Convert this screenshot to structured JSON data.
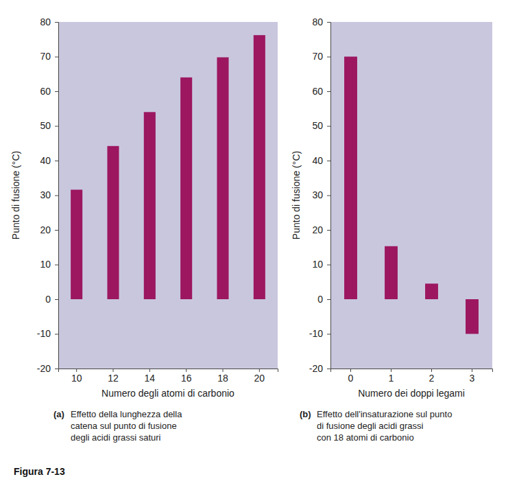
{
  "chart_data": [
    {
      "type": "bar",
      "caption": {
        "label": "(a)",
        "lines": [
          "Effetto della lunghezza della",
          "catena sul punto di fusione",
          "degli acidi grassi saturi"
        ]
      },
      "x_label": "Numero degli atomi di carbonio",
      "y_label": "Punto di fusione (°C)",
      "categories": [
        "10",
        "12",
        "14",
        "16",
        "18",
        "20"
      ],
      "values": [
        31.6,
        44.2,
        54,
        64,
        69.8,
        76.2
      ],
      "color": "#9c1760",
      "ylim": [
        -20,
        80
      ],
      "yticks": [
        -20,
        -10,
        0,
        10,
        20,
        30,
        40,
        50,
        60,
        70,
        80
      ]
    },
    {
      "type": "bar",
      "caption": {
        "label": "(b)",
        "lines": [
          "Effetto dell'insaturazione sul punto",
          "di fusione degli acidi grassi",
          "con 18 atomi di carbonio"
        ]
      },
      "x_label": "Numero dei doppi legami",
      "y_label": "Punto di fusione (°C)",
      "categories": [
        "0",
        "1",
        "2",
        "3"
      ],
      "values": [
        70,
        15.3,
        4.5,
        -10
      ],
      "color": "#9c1760",
      "ylim": [
        -20,
        80
      ],
      "yticks": [
        -20,
        -10,
        0,
        10,
        20,
        30,
        40,
        50,
        60,
        70,
        80
      ]
    }
  ],
  "figure_label": "Figura 7-13"
}
